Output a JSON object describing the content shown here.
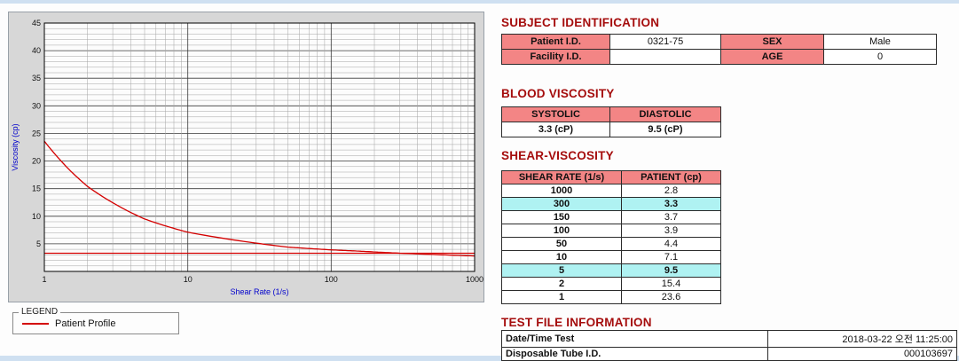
{
  "colors": {
    "accent_red": "#d40000",
    "header_pink": "#f38585",
    "highlight_cyan": "#aff2f2",
    "title_maroon": "#a50d0d",
    "axis_blue": "#0000cc"
  },
  "chart": {
    "y_label": "Viscosity (cp)",
    "x_label": "Shear Rate (1/s)",
    "legend_title": "LEGEND",
    "legend_item": "Patient Profile"
  },
  "chart_data": {
    "type": "line",
    "x_scale": "log",
    "x": [
      1,
      2,
      5,
      10,
      50,
      100,
      150,
      300,
      1000
    ],
    "series": [
      {
        "name": "Patient Profile",
        "values": [
          23.6,
          15.4,
          9.5,
          7.1,
          4.4,
          3.9,
          3.7,
          3.3,
          2.8
        ]
      }
    ],
    "reference_line_y": 3.3,
    "xlim": [
      1,
      1000
    ],
    "ylim": [
      0,
      45
    ],
    "y_ticks": [
      5,
      10,
      15,
      20,
      25,
      30,
      35,
      40,
      45
    ],
    "x_ticks": [
      1,
      10,
      100,
      1000
    ],
    "title": "",
    "xlabel": "Shear Rate (1/s)",
    "ylabel": "Viscosity (cp)",
    "grid": true,
    "legend_position": "bottom-left",
    "color": "#d40000"
  },
  "subject": {
    "title": "SUBJECT IDENTIFICATION",
    "rows": [
      {
        "label1": "Patient I.D.",
        "value1": "0321-75",
        "label2": "SEX",
        "value2": "Male"
      },
      {
        "label1": "Facility I.D.",
        "value1": "",
        "label2": "AGE",
        "value2": "0"
      }
    ]
  },
  "blood": {
    "title": "BLOOD VISCOSITY",
    "headers": [
      "SYSTOLIC",
      "DIASTOLIC"
    ],
    "values": [
      "3.3 (cP)",
      "9.5 (cP)"
    ]
  },
  "shear": {
    "title": "SHEAR-VISCOSITY",
    "headers": [
      "SHEAR RATE (1/s)",
      "PATIENT (cp)"
    ],
    "rows": [
      {
        "rate": "1000",
        "value": "2.8",
        "highlight": false
      },
      {
        "rate": "300",
        "value": "3.3",
        "highlight": true
      },
      {
        "rate": "150",
        "value": "3.7",
        "highlight": false
      },
      {
        "rate": "100",
        "value": "3.9",
        "highlight": false
      },
      {
        "rate": "50",
        "value": "4.4",
        "highlight": false
      },
      {
        "rate": "10",
        "value": "7.1",
        "highlight": false
      },
      {
        "rate": "5",
        "value": "9.5",
        "highlight": true
      },
      {
        "rate": "2",
        "value": "15.4",
        "highlight": false
      },
      {
        "rate": "1",
        "value": "23.6",
        "highlight": false
      }
    ]
  },
  "testfile": {
    "title": "TEST FILE INFORMATION",
    "rows": [
      {
        "label": "Date/Time Test",
        "value": "2018-03-22  오전 11:25:00"
      },
      {
        "label": "Disposable Tube I.D.",
        "value": "000103697"
      }
    ]
  }
}
